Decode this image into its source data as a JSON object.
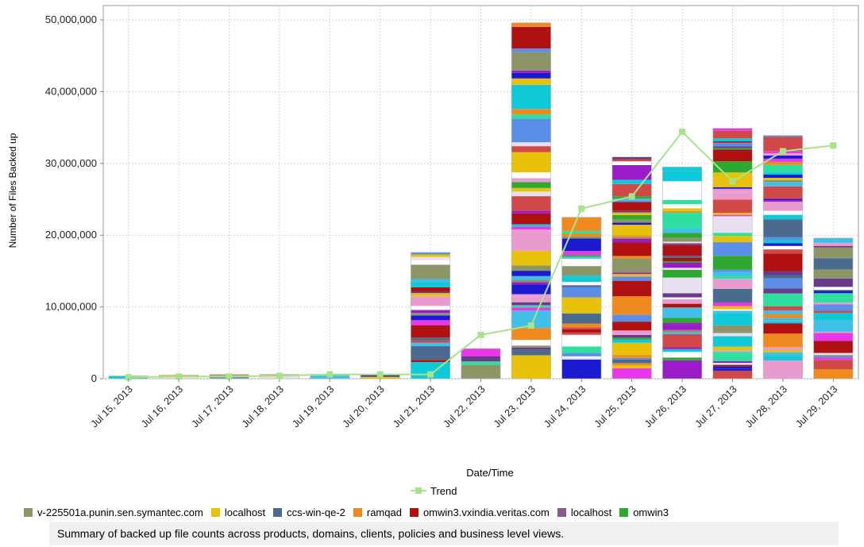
{
  "chart_data": {
    "type": "bar",
    "stacked": true,
    "ylabel": "Number of Files Backed up",
    "xlabel": "Date/Time",
    "ylim": [
      0,
      52000000
    ],
    "yticks": [
      0,
      10000000,
      20000000,
      30000000,
      40000000,
      50000000
    ],
    "ytick_labels": [
      "0",
      "10,000,000",
      "20,000,000",
      "30,000,000",
      "40,000,000",
      "50,000,000"
    ],
    "categories": [
      "Jul 15, 2013",
      "Jul 16, 2013",
      "Jul 17, 2013",
      "Jul 18, 2013",
      "Jul 19, 2013",
      "Jul 20, 2013",
      "Jul 21, 2013",
      "Jul 22, 2013",
      "Jul 23, 2013",
      "Jul 24, 2013",
      "Jul 25, 2013",
      "Jul 26, 2013",
      "Jul 27, 2013",
      "Jul 28, 2013",
      "Jul 29, 2013"
    ],
    "totals": [
      400000,
      500000,
      600000,
      600000,
      600000,
      500000,
      17600000,
      4200000,
      49600000,
      22500000,
      30900000,
      29500000,
      34900000,
      33900000,
      19600000
    ],
    "trend": {
      "name": "Trend",
      "color": "#a6e38a",
      "values": [
        200000,
        300000,
        300000,
        400000,
        600000,
        600000,
        600000,
        6100000,
        7400000,
        23700000,
        25400000,
        34400000,
        27500000,
        31700000,
        32500000
      ]
    },
    "grid": true,
    "legend_position": "bottom",
    "legend": [
      {
        "name": "v-225501a.punin.sen.symantec.com",
        "color": "#8b9566"
      },
      {
        "name": "localhost",
        "color": "#e8c20a"
      },
      {
        "name": "ccs-win-qe-2",
        "color": "#4a6a8f"
      },
      {
        "name": "ramqad",
        "color": "#f08a1e"
      },
      {
        "name": "omwin3.vxindia.veritas.com",
        "color": "#b01010"
      },
      {
        "name": "localhost",
        "color": "#8a5a8a"
      },
      {
        "name": "omwin3",
        "color": "#2ea82e"
      }
    ],
    "palette": [
      "#8b9566",
      "#5b8ee6",
      "#2ee0a0",
      "#e99bd0",
      "#0ec9d8",
      "#9a1cc8",
      "#ffffff",
      "#e8c20a",
      "#f08a1e",
      "#1a1ad0",
      "#e8e0f0",
      "#e838e8",
      "#6a3a8a",
      "#b01010",
      "#2ea82e",
      "#4a6a8f",
      "#d04848",
      "#40c0e8"
    ]
  },
  "summary": "Summary of backed up file counts across products, domains, clients, policies and business level views."
}
